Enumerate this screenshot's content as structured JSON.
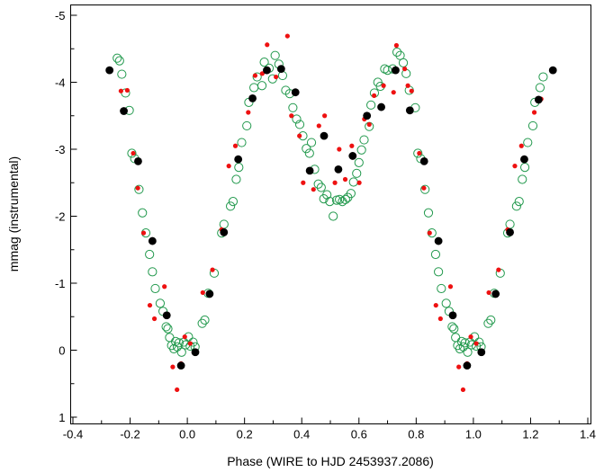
{
  "chart_data": {
    "type": "scatter",
    "title": "",
    "xlabel": "Phase (WIRE to HJD 2453937.2086)",
    "ylabel": "mmag (instrumental)",
    "xlim": [
      -0.4,
      1.4
    ],
    "ylim": [
      1.0,
      -5.0
    ],
    "x_ticks": [
      "-0.4",
      "-0.2",
      "0.0",
      "0.2",
      "0.4",
      "0.6",
      "0.8",
      "1.0",
      "1.2",
      "1.4"
    ],
    "y_ticks": [
      "-5",
      "-4",
      "-3",
      "-2",
      "-1",
      "0",
      "1"
    ],
    "grid": false,
    "colors": {
      "open_circles": "#22994d",
      "red_dots": "#ee1111",
      "black_dots": "#000000"
    },
    "series": [
      {
        "marker": "open-circle",
        "points": [
          [
            -0.245,
            -4.36
          ],
          [
            -0.237,
            -4.32
          ],
          [
            -0.229,
            -4.12
          ],
          [
            -0.216,
            -3.84
          ],
          [
            -0.203,
            -3.58
          ],
          [
            -0.194,
            -2.94
          ],
          [
            -0.184,
            -2.86
          ],
          [
            -0.169,
            -2.4
          ],
          [
            -0.157,
            -2.05
          ],
          [
            -0.145,
            -1.75
          ],
          [
            -0.132,
            -1.43
          ],
          [
            -0.122,
            -1.17
          ],
          [
            -0.112,
            -0.92
          ],
          [
            -0.095,
            -0.7
          ],
          [
            -0.085,
            -0.58
          ],
          [
            -0.074,
            -0.35
          ],
          [
            -0.068,
            -0.32
          ],
          [
            -0.062,
            -0.19
          ],
          [
            -0.055,
            -0.07
          ],
          [
            -0.047,
            -0.02
          ],
          [
            -0.041,
            -0.13
          ],
          [
            -0.035,
            -0.05
          ],
          [
            -0.029,
            -0.11
          ],
          [
            -0.02,
            0.03
          ],
          [
            -0.012,
            -0.12
          ],
          [
            -0.006,
            -0.08
          ],
          [
            0.004,
            -0.2
          ],
          [
            0.01,
            -0.06
          ],
          [
            0.02,
            -0.12
          ],
          [
            0.027,
            -0.05
          ],
          [
            0.052,
            -0.4
          ],
          [
            0.061,
            -0.45
          ],
          [
            0.073,
            -0.85
          ],
          [
            0.094,
            -1.15
          ],
          [
            0.12,
            -1.75
          ],
          [
            0.128,
            -1.88
          ],
          [
            0.151,
            -2.15
          ],
          [
            0.16,
            -2.22
          ],
          [
            0.171,
            -2.55
          ],
          [
            0.18,
            -2.73
          ],
          [
            0.19,
            -3.1
          ],
          [
            0.208,
            -3.35
          ],
          [
            0.215,
            -3.7
          ],
          [
            0.233,
            -3.92
          ],
          [
            0.244,
            -4.08
          ],
          [
            0.261,
            -3.95
          ],
          [
            0.269,
            -4.3
          ],
          [
            0.286,
            -4.21
          ],
          [
            0.298,
            -4.05
          ],
          [
            0.307,
            -4.4
          ],
          [
            0.32,
            -4.27
          ],
          [
            0.333,
            -4.1
          ],
          [
            0.344,
            -3.88
          ],
          [
            0.358,
            -3.83
          ],
          [
            0.369,
            -3.62
          ],
          [
            0.382,
            -3.45
          ],
          [
            0.393,
            -3.37
          ],
          [
            0.404,
            -3.2
          ],
          [
            0.416,
            -3.01
          ],
          [
            0.427,
            -2.94
          ],
          [
            0.434,
            -3.1
          ],
          [
            0.445,
            -2.7
          ],
          [
            0.458,
            -2.48
          ],
          [
            0.468,
            -2.43
          ],
          [
            0.477,
            -2.26
          ],
          [
            0.488,
            -2.32
          ],
          [
            0.498,
            -2.22
          ],
          [
            0.51,
            -2.0
          ],
          [
            0.522,
            -2.24
          ],
          [
            0.532,
            -2.25
          ],
          [
            0.542,
            -2.22
          ],
          [
            0.553,
            -2.25
          ],
          [
            0.561,
            -2.28
          ],
          [
            0.572,
            -2.34
          ],
          [
            0.581,
            -2.51
          ],
          [
            0.592,
            -2.64
          ],
          [
            0.6,
            -2.8
          ],
          [
            0.609,
            -2.99
          ],
          [
            0.618,
            -3.14
          ],
          [
            0.636,
            -3.34
          ],
          [
            0.642,
            -3.66
          ],
          [
            0.654,
            -3.84
          ],
          [
            0.666,
            -4.0
          ],
          [
            0.675,
            -3.94
          ],
          [
            0.69,
            -4.2
          ],
          [
            0.7,
            -4.18
          ],
          [
            0.718,
            -4.2
          ],
          [
            0.733,
            -4.45
          ],
          [
            0.744,
            -4.4
          ],
          [
            0.755,
            -4.29
          ],
          [
            0.765,
            -4.13
          ],
          [
            0.776,
            -3.88
          ],
          [
            0.797,
            -3.62
          ],
          [
            0.806,
            -2.94
          ],
          [
            0.816,
            -2.86
          ],
          [
            0.831,
            -2.4
          ],
          [
            0.843,
            -2.05
          ],
          [
            0.855,
            -1.75
          ],
          [
            0.868,
            -1.43
          ],
          [
            0.878,
            -1.17
          ],
          [
            0.888,
            -0.92
          ],
          [
            0.905,
            -0.7
          ],
          [
            0.915,
            -0.58
          ],
          [
            0.926,
            -0.35
          ],
          [
            0.932,
            -0.32
          ],
          [
            0.938,
            -0.19
          ],
          [
            0.945,
            -0.07
          ],
          [
            0.953,
            -0.02
          ],
          [
            0.959,
            -0.13
          ],
          [
            0.965,
            -0.05
          ],
          [
            0.971,
            -0.11
          ],
          [
            0.98,
            0.03
          ],
          [
            0.988,
            -0.12
          ],
          [
            0.994,
            -0.08
          ],
          [
            1.004,
            -0.2
          ],
          [
            1.01,
            -0.06
          ],
          [
            1.02,
            -0.12
          ],
          [
            1.027,
            -0.05
          ],
          [
            1.052,
            -0.4
          ],
          [
            1.061,
            -0.45
          ],
          [
            1.073,
            -0.85
          ],
          [
            1.094,
            -1.15
          ],
          [
            1.12,
            -1.75
          ],
          [
            1.128,
            -1.88
          ],
          [
            1.151,
            -2.15
          ],
          [
            1.16,
            -2.22
          ],
          [
            1.171,
            -2.55
          ],
          [
            1.18,
            -2.73
          ],
          [
            1.19,
            -3.1
          ],
          [
            1.208,
            -3.35
          ],
          [
            1.215,
            -3.7
          ],
          [
            1.233,
            -3.92
          ],
          [
            1.244,
            -4.08
          ]
        ]
      },
      {
        "marker": "small-red-dot",
        "points": [
          [
            -0.232,
            -3.87
          ],
          [
            -0.21,
            -3.88
          ],
          [
            -0.189,
            -2.94
          ],
          [
            -0.173,
            -2.42
          ],
          [
            -0.153,
            -1.75
          ],
          [
            -0.131,
            -0.67
          ],
          [
            -0.115,
            -0.47
          ],
          [
            -0.08,
            -0.95
          ],
          [
            -0.051,
            0.25
          ],
          [
            -0.036,
            0.59
          ],
          [
            -0.022,
            0.2
          ],
          [
            -0.009,
            -0.2
          ],
          [
            0.01,
            -0.1
          ],
          [
            0.054,
            -0.86
          ],
          [
            0.088,
            -1.2
          ],
          [
            0.12,
            -1.8
          ],
          [
            0.145,
            -2.75
          ],
          [
            0.168,
            -3.05
          ],
          [
            0.213,
            -3.55
          ],
          [
            0.237,
            -4.1
          ],
          [
            0.262,
            -4.13
          ],
          [
            0.279,
            -4.56
          ],
          [
            0.31,
            -4.08
          ],
          [
            0.35,
            -4.69
          ],
          [
            0.364,
            -3.5
          ],
          [
            0.378,
            -3.85
          ],
          [
            0.392,
            -3.2
          ],
          [
            0.405,
            -2.5
          ],
          [
            0.441,
            -2.4
          ],
          [
            0.46,
            -3.35
          ],
          [
            0.48,
            -3.5
          ],
          [
            0.516,
            -2.5
          ],
          [
            0.531,
            -3.0
          ],
          [
            0.552,
            -2.55
          ],
          [
            0.575,
            -3.05
          ],
          [
            0.601,
            -2.5
          ],
          [
            0.619,
            -3.45
          ],
          [
            0.636,
            -3.37
          ],
          [
            0.653,
            -3.8
          ],
          [
            0.686,
            -3.95
          ],
          [
            0.721,
            -3.85
          ],
          [
            0.731,
            -4.55
          ],
          [
            0.76,
            -4.2
          ],
          [
            0.771,
            -3.95
          ],
          [
            0.784,
            -3.87
          ],
          [
            0.811,
            -2.94
          ],
          [
            0.827,
            -2.42
          ],
          [
            0.847,
            -1.75
          ],
          [
            0.869,
            -0.67
          ],
          [
            0.885,
            -0.47
          ],
          [
            0.92,
            -0.95
          ],
          [
            0.949,
            0.25
          ],
          [
            0.964,
            0.59
          ],
          [
            0.978,
            0.2
          ],
          [
            0.991,
            -0.2
          ],
          [
            1.01,
            -0.1
          ],
          [
            1.054,
            -0.86
          ],
          [
            1.088,
            -1.2
          ],
          [
            1.12,
            -1.8
          ],
          [
            1.145,
            -2.75
          ],
          [
            1.168,
            -3.05
          ],
          [
            1.213,
            -3.55
          ],
          [
            1.237,
            -3.75
          ]
        ]
      },
      {
        "marker": "large-black-dot",
        "points": [
          [
            -0.272,
            -4.18
          ],
          [
            -0.222,
            -3.57
          ],
          [
            -0.172,
            -2.82
          ],
          [
            -0.122,
            -1.63
          ],
          [
            -0.072,
            -0.52
          ],
          [
            -0.022,
            0.23
          ],
          [
            0.028,
            0.03
          ],
          [
            0.078,
            -0.84
          ],
          [
            0.128,
            -1.76
          ],
          [
            0.178,
            -2.85
          ],
          [
            0.228,
            -3.76
          ],
          [
            0.278,
            -4.18
          ],
          [
            0.328,
            -4.2
          ],
          [
            0.378,
            -3.85
          ],
          [
            0.428,
            -2.68
          ],
          [
            0.478,
            -3.2
          ],
          [
            0.528,
            -2.7
          ],
          [
            0.578,
            -2.9
          ],
          [
            0.628,
            -3.5
          ],
          [
            0.678,
            -3.63
          ],
          [
            0.728,
            -4.18
          ],
          [
            0.778,
            -3.58
          ],
          [
            0.828,
            -2.82
          ],
          [
            0.878,
            -1.63
          ],
          [
            0.928,
            -0.52
          ],
          [
            0.978,
            0.23
          ],
          [
            1.028,
            0.03
          ],
          [
            1.078,
            -0.84
          ],
          [
            1.128,
            -1.76
          ],
          [
            1.178,
            -2.85
          ],
          [
            1.228,
            -3.74
          ],
          [
            1.278,
            -4.18
          ]
        ]
      }
    ]
  }
}
